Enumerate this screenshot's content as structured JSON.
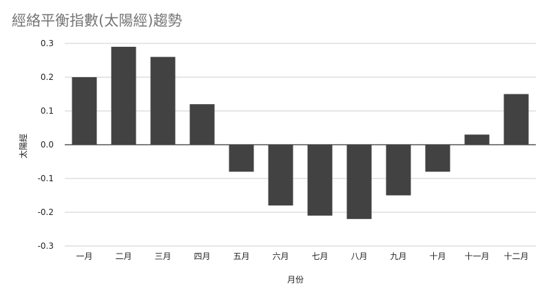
{
  "chart_data": {
    "type": "bar",
    "title": "經絡平衡指數(太陽經)趨勢",
    "xlabel": "月份",
    "ylabel": "太陽經",
    "categories": [
      "一月",
      "二月",
      "三月",
      "四月",
      "五月",
      "六月",
      "七月",
      "八月",
      "九月",
      "十月",
      "十一月",
      "十二月"
    ],
    "values": [
      0.2,
      0.29,
      0.26,
      0.12,
      -0.08,
      -0.18,
      -0.21,
      -0.22,
      -0.15,
      -0.08,
      0.03,
      0.15
    ],
    "ylim": [
      -0.3,
      0.3
    ],
    "yticks": [
      "0.3",
      "0.2",
      "0.1",
      "0.0",
      "-0.1",
      "-0.2",
      "-0.3"
    ],
    "grid": true,
    "bar_color": "#424242"
  }
}
